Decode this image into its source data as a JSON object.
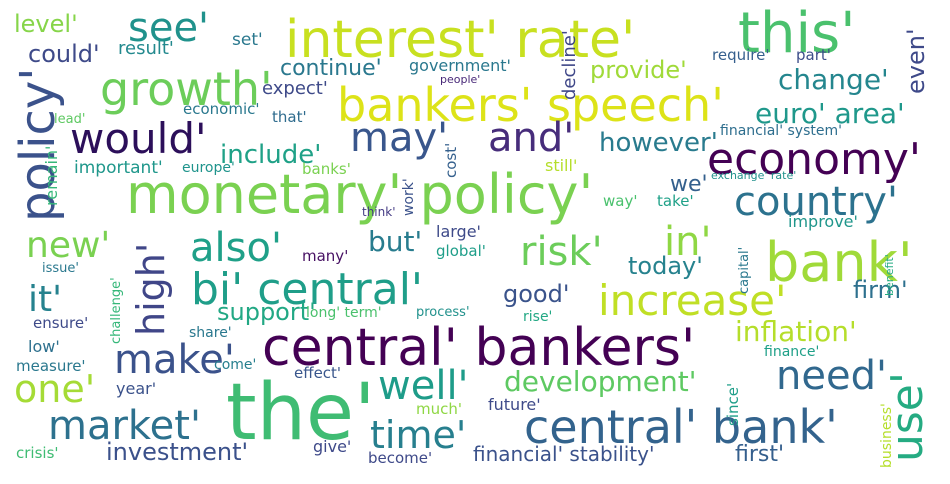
{
  "words": [
    {
      "text": "the'",
      "color": "#3fbc73"
    },
    {
      "text": "central' bankers'",
      "color": "#440154"
    },
    {
      "text": "monetary' policy'",
      "color": "#7ad151"
    },
    {
      "text": "interest' rate'",
      "color": "#c8e020"
    },
    {
      "text": "bankers' speech'",
      "color": "#dde318"
    },
    {
      "text": "this'",
      "color": "#4ac16d"
    },
    {
      "text": "bank'",
      "color": "#a0da39"
    },
    {
      "text": "central' bank'",
      "color": "#33638d"
    },
    {
      "text": "economy'",
      "color": "#440154"
    },
    {
      "text": "bi' central'",
      "color": "#1f9e89"
    },
    {
      "text": "increase'",
      "color": "#c0df25"
    },
    {
      "text": "growth'",
      "color": "#6ccd5a"
    },
    {
      "text": "policy'",
      "color": "#3b528b"
    },
    {
      "text": "would'",
      "color": "#2c0f5a"
    },
    {
      "text": "may'",
      "color": "#39568c"
    },
    {
      "text": "and'",
      "color": "#472d7b"
    },
    {
      "text": "also'",
      "color": "#1fa088"
    },
    {
      "text": "country'",
      "color": "#2c728e"
    },
    {
      "text": "make'",
      "color": "#3b528b"
    },
    {
      "text": "market'",
      "color": "#2d718e"
    },
    {
      "text": "time'",
      "color": "#277f8e"
    },
    {
      "text": "well'",
      "color": "#1e9c89"
    },
    {
      "text": "use'",
      "color": "#25ab82"
    },
    {
      "text": "need'",
      "color": "#31688e"
    },
    {
      "text": "high'",
      "color": "#404688"
    },
    {
      "text": "see'",
      "color": "#20928c"
    },
    {
      "text": "new'",
      "color": "#7ad151"
    },
    {
      "text": "risk'",
      "color": "#6ccd5a"
    },
    {
      "text": "in'",
      "color": "#8fd744"
    },
    {
      "text": "one'",
      "color": "#a5db36"
    },
    {
      "text": "it'",
      "color": "#26828e"
    },
    {
      "text": "development'",
      "color": "#5ec962"
    },
    {
      "text": "inflation'",
      "color": "#b5de2b"
    },
    {
      "text": "change'",
      "color": "#24868e"
    },
    {
      "text": "euro' area'",
      "color": "#1f988b"
    },
    {
      "text": "however'",
      "color": "#297b8e"
    },
    {
      "text": "include'",
      "color": "#1fa187"
    },
    {
      "text": "provide'",
      "color": "#a0da39"
    },
    {
      "text": "could'",
      "color": "#3e4a89"
    },
    {
      "text": "level'",
      "color": "#86d549"
    },
    {
      "text": "continue'",
      "color": "#2a788e"
    },
    {
      "text": "government'",
      "color": "#2a788e"
    },
    {
      "text": "but'",
      "color": "#287c8e"
    },
    {
      "text": "good'",
      "color": "#3a538b"
    },
    {
      "text": "today'",
      "color": "#26828e"
    },
    {
      "text": "firm'",
      "color": "#2d708e"
    },
    {
      "text": "support'",
      "color": "#22a884"
    },
    {
      "text": "investment'",
      "color": "#3b518b"
    },
    {
      "text": "first'",
      "color": "#355f8d"
    },
    {
      "text": "financial' stability'",
      "color": "#3b528b"
    },
    {
      "text": "even'",
      "color": "#3e4989"
    },
    {
      "text": "require'",
      "color": "#355f8d"
    },
    {
      "text": "part'",
      "color": "#3d4e8a"
    },
    {
      "text": "set'",
      "color": "#2a788e"
    },
    {
      "text": "result'",
      "color": "#23898e"
    },
    {
      "text": "expect'",
      "color": "#3e4a89"
    },
    {
      "text": "people'",
      "color": "#482878"
    },
    {
      "text": "decline'",
      "color": "#3f4788"
    },
    {
      "text": "economic'",
      "color": "#2a788e"
    },
    {
      "text": "that'",
      "color": "#2f6c8e"
    },
    {
      "text": "lead'",
      "color": "#5ec962"
    },
    {
      "text": "important'",
      "color": "#1f978b"
    },
    {
      "text": "europe'",
      "color": "#1f948c"
    },
    {
      "text": "banks'",
      "color": "#7ad151"
    },
    {
      "text": "remain'",
      "color": "#35b779"
    },
    {
      "text": "cost'",
      "color": "#35608d"
    },
    {
      "text": "still'",
      "color": "#b5de2b"
    },
    {
      "text": "work'",
      "color": "#3b528b"
    },
    {
      "text": "financial' system'",
      "color": "#2e6e8e"
    },
    {
      "text": "exchange' rate'",
      "color": "#21918c"
    },
    {
      "text": "we'",
      "color": "#34608d"
    },
    {
      "text": "way'",
      "color": "#4ac16d"
    },
    {
      "text": "take'",
      "color": "#1fa188"
    },
    {
      "text": "think'",
      "color": "#443b84"
    },
    {
      "text": "large'",
      "color": "#3e4a89"
    },
    {
      "text": "improve'",
      "color": "#1f968b"
    },
    {
      "text": "global'",
      "color": "#1f9e89"
    },
    {
      "text": "many'",
      "color": "#471063"
    },
    {
      "text": "capital'",
      "color": "#2a788e"
    },
    {
      "text": "benefit'",
      "color": "#25ab82"
    },
    {
      "text": "issue'",
      "color": "#2a788e"
    },
    {
      "text": "challenge'",
      "color": "#35b779"
    },
    {
      "text": "ensure'",
      "color": "#3e4a89"
    },
    {
      "text": "long' term'",
      "color": "#4ac16d"
    },
    {
      "text": "process'",
      "color": "#21918c"
    },
    {
      "text": "rise'",
      "color": "#22a884"
    },
    {
      "text": "share'",
      "color": "#2a788e"
    },
    {
      "text": "low'",
      "color": "#2d708e"
    },
    {
      "text": "finance'",
      "color": "#1fa088"
    },
    {
      "text": "measure'",
      "color": "#2a788e"
    },
    {
      "text": "come'",
      "color": "#277f8e"
    },
    {
      "text": "year'",
      "color": "#3b528b"
    },
    {
      "text": "effect'",
      "color": "#39568c"
    },
    {
      "text": "since'",
      "color": "#1f9e89"
    },
    {
      "text": "much'",
      "color": "#8fd744"
    },
    {
      "text": "future'",
      "color": "#3e4a89"
    },
    {
      "text": "business'",
      "color": "#b5de2b"
    },
    {
      "text": "crisis'",
      "color": "#3fbc73"
    },
    {
      "text": "give'",
      "color": "#3e4989"
    },
    {
      "text": "become'",
      "color": "#3e4989"
    }
  ]
}
